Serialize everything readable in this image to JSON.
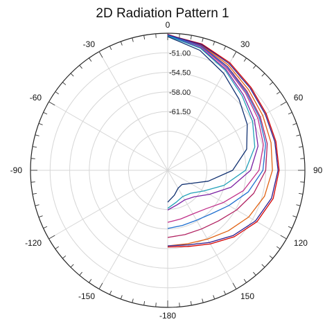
{
  "chart_data": {
    "type": "line",
    "title": "2D Radiation Pattern 1",
    "polar": true,
    "theta_ticks": [
      0,
      30,
      60,
      90,
      120,
      150,
      -180,
      -150,
      -120,
      -90,
      -60,
      -30
    ],
    "radial_ticks": [
      -51.0,
      -54.5,
      -58.0,
      -61.5
    ],
    "radial_tick_labels": [
      "-51.00",
      "-54.50",
      "-58.00",
      "-61.50"
    ],
    "rlim": [
      -72,
      -47.5
    ],
    "grid": true,
    "colors": [
      "#d40000",
      "#e06010",
      "#b02060",
      "#c0308a",
      "#7a1fa2",
      "#2a1a8c",
      "#1e6fd0",
      "#20a0b8",
      "#103070"
    ],
    "series": [
      {
        "color": "#d40000",
        "theta": [
          0,
          15,
          30,
          45,
          60,
          75,
          90,
          105,
          120,
          135,
          150,
          165,
          180
        ],
        "r": [
          -47.8,
          -48.6,
          -49.8,
          -51.0,
          -51.7,
          -52.0,
          -52.1,
          -52.5,
          -53.6,
          -55.2,
          -56.8,
          -57.9,
          -58.3
        ]
      },
      {
        "color": "#e06010",
        "theta": [
          0,
          15,
          30,
          45,
          60,
          75,
          90,
          105,
          120,
          135,
          150,
          165,
          180
        ],
        "r": [
          -47.7,
          -48.8,
          -50.3,
          -51.6,
          -52.4,
          -52.9,
          -53.3,
          -54.1,
          -55.3,
          -56.7,
          -57.8,
          -58.4,
          -58.5
        ]
      },
      {
        "color": "#b02060",
        "theta": [
          0,
          15,
          30,
          45,
          60,
          75,
          90,
          105,
          120,
          135,
          150,
          165,
          180
        ],
        "r": [
          -47.7,
          -48.9,
          -50.6,
          -52.0,
          -52.9,
          -53.6,
          -54.5,
          -56.1,
          -57.8,
          -59.2,
          -59.9,
          -60.1,
          -60.0
        ]
      },
      {
        "color": "#c0308a",
        "theta": [
          0,
          15,
          30,
          45,
          60,
          75,
          90,
          105,
          120,
          135,
          150,
          165,
          180
        ],
        "r": [
          -47.8,
          -49.1,
          -50.9,
          -52.4,
          -53.4,
          -54.3,
          -55.7,
          -58.0,
          -60.5,
          -62.3,
          -63.0,
          -63.0,
          -62.7
        ]
      },
      {
        "color": "#7a1fa2",
        "theta": [
          0,
          15,
          30,
          45,
          60,
          75,
          90,
          105,
          120,
          135,
          150,
          165,
          180
        ],
        "r": [
          -47.9,
          -49.3,
          -51.2,
          -52.9,
          -54.1,
          -55.3,
          -57.2,
          -60.3,
          -63.4,
          -65.3,
          -65.9,
          -65.6,
          -64.9
        ]
      },
      {
        "color": "#2a1a8c",
        "theta": [
          0,
          15,
          30,
          45,
          60,
          75,
          90,
          105,
          120,
          135,
          150,
          165,
          180
        ],
        "r": [
          -47.8,
          -48.7,
          -50.0,
          -51.2,
          -51.9,
          -52.2,
          -52.3,
          -52.8,
          -53.9,
          -55.5,
          -57.1,
          -58.2,
          -58.5
        ]
      },
      {
        "color": "#1e6fd0",
        "theta": [
          0,
          15,
          30,
          45,
          60,
          75,
          90,
          105,
          120,
          135,
          150,
          165,
          180
        ],
        "r": [
          -47.9,
          -49.0,
          -50.7,
          -52.2,
          -53.1,
          -53.9,
          -55.0,
          -57.1,
          -59.4,
          -61.0,
          -61.7,
          -61.8,
          -61.6
        ]
      },
      {
        "color": "#20a0b8",
        "theta": [
          0,
          15,
          30,
          45,
          60,
          75,
          90,
          105,
          120,
          135,
          150,
          165,
          180
        ],
        "r": [
          -48.0,
          -49.4,
          -51.4,
          -53.2,
          -54.5,
          -55.9,
          -58.1,
          -61.6,
          -64.6,
          -66.2,
          -66.6,
          -66.1,
          -65.2
        ]
      },
      {
        "color": "#103070",
        "theta": [
          0,
          15,
          30,
          45,
          60,
          75,
          90,
          105,
          120,
          135,
          150,
          165,
          180
        ],
        "r": [
          -48.1,
          -49.8,
          -52.0,
          -54.0,
          -55.6,
          -57.4,
          -60.4,
          -64.5,
          -67.3,
          -68.4,
          -68.3,
          -67.4,
          -66.3
        ]
      }
    ]
  }
}
